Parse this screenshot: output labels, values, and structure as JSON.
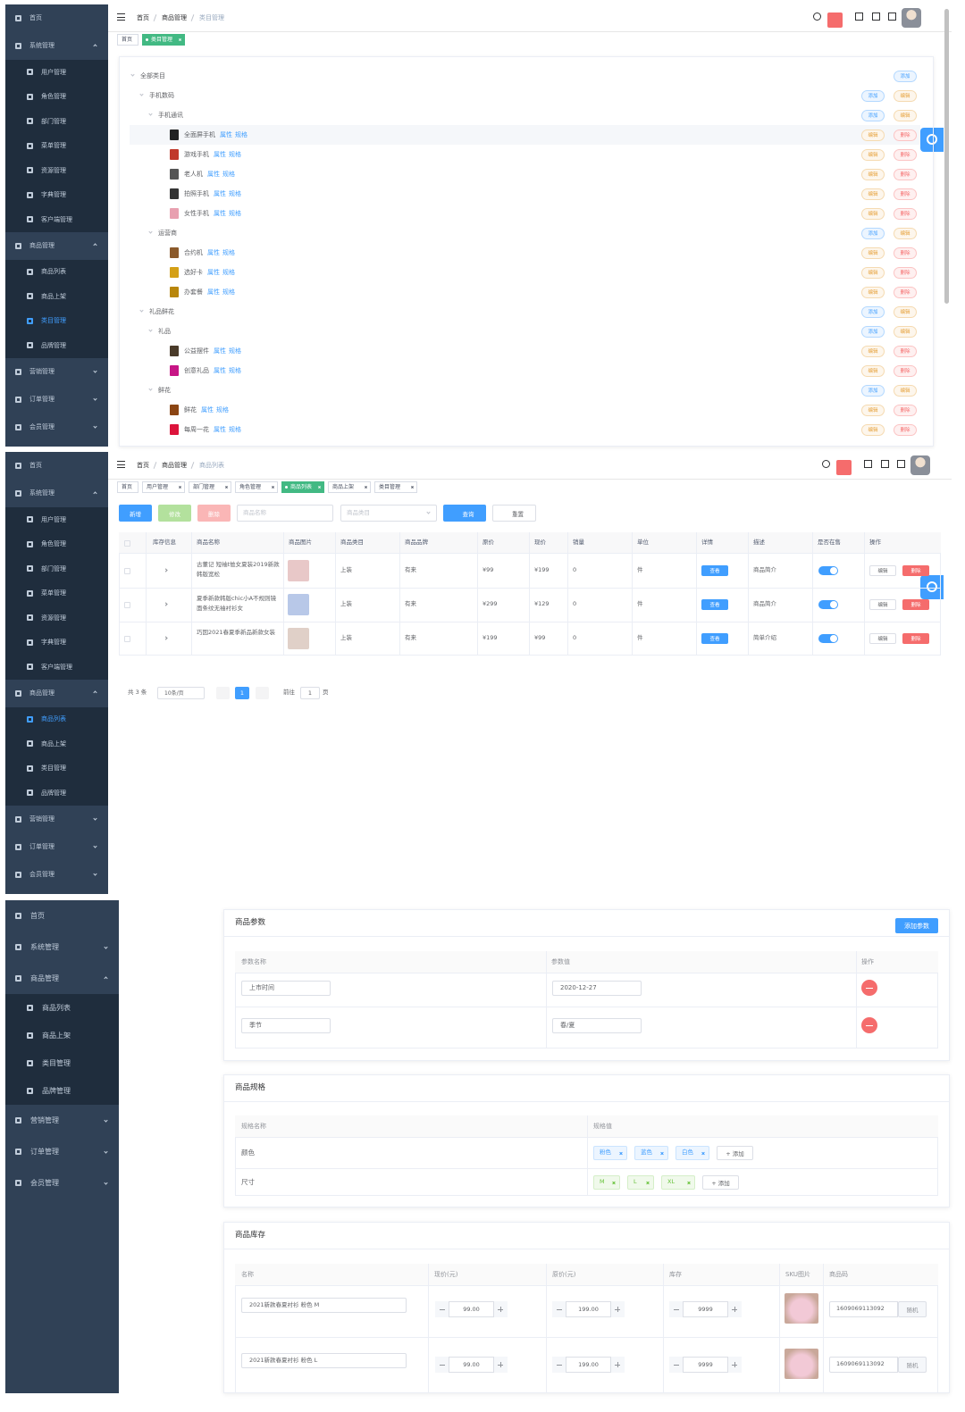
{
  "panel1": {
    "sidebar": [
      {
        "label": "首页",
        "level": 0
      },
      {
        "label": "系统管理",
        "level": 0,
        "expanded": true
      },
      {
        "label": "用户管理",
        "level": 1
      },
      {
        "label": "角色管理",
        "level": 1
      },
      {
        "label": "部门管理",
        "level": 1
      },
      {
        "label": "菜单管理",
        "level": 1
      },
      {
        "label": "资源管理",
        "level": 1
      },
      {
        "label": "字典管理",
        "level": 1
      },
      {
        "label": "客户端管理",
        "level": 1
      },
      {
        "label": "商品管理",
        "level": 0,
        "expanded": true
      },
      {
        "label": "商品列表",
        "level": 1
      },
      {
        "label": "商品上架",
        "level": 1
      },
      {
        "label": "类目管理",
        "level": 1,
        "active": true
      },
      {
        "label": "品牌管理",
        "level": 1
      },
      {
        "label": "营销管理",
        "level": 0,
        "expanded": false
      },
      {
        "label": "订单管理",
        "level": 0,
        "expanded": false
      },
      {
        "label": "会员管理",
        "level": 0,
        "expanded": false
      }
    ],
    "breadcrumb": [
      "首页",
      "商品管理",
      "类目管理"
    ],
    "tabs": [
      "首页",
      "类目管理"
    ],
    "active_tab": 1,
    "tree": {
      "button_labels": {
        "add": "添加",
        "edit": "编辑",
        "delete": "删除"
      },
      "link_labels": [
        "属性",
        "规格"
      ],
      "rows": [
        {
          "label": "全部类目",
          "level": 0,
          "buttons": [
            "add"
          ]
        },
        {
          "label": "手机数码",
          "level": 1,
          "buttons": [
            "add",
            "edit"
          ]
        },
        {
          "label": "手机通讯",
          "level": 2,
          "buttons": [
            "add",
            "edit"
          ]
        },
        {
          "label": "全面屏手机",
          "level": 3,
          "buttons": [
            "edit",
            "delete"
          ],
          "highlight": true
        },
        {
          "label": "游戏手机",
          "level": 3,
          "buttons": [
            "edit",
            "delete"
          ]
        },
        {
          "label": "老人机",
          "level": 3,
          "buttons": [
            "edit",
            "delete"
          ]
        },
        {
          "label": "拍照手机",
          "level": 3,
          "buttons": [
            "edit",
            "delete"
          ]
        },
        {
          "label": "女性手机",
          "level": 3,
          "buttons": [
            "edit",
            "delete"
          ]
        },
        {
          "label": "运营商",
          "level": 2,
          "buttons": [
            "add",
            "edit"
          ]
        },
        {
          "label": "合约机",
          "level": 3,
          "buttons": [
            "edit",
            "delete"
          ]
        },
        {
          "label": "选好卡",
          "level": 3,
          "buttons": [
            "edit",
            "delete"
          ]
        },
        {
          "label": "办套餐",
          "level": 3,
          "buttons": [
            "edit",
            "delete"
          ]
        },
        {
          "label": "礼品鲜花",
          "level": 1,
          "buttons": [
            "add",
            "edit"
          ]
        },
        {
          "label": "礼品",
          "level": 2,
          "buttons": [
            "add",
            "edit"
          ]
        },
        {
          "label": "公益摆件",
          "level": 3,
          "buttons": [
            "edit",
            "delete"
          ]
        },
        {
          "label": "创意礼品",
          "level": 3,
          "buttons": [
            "edit",
            "delete"
          ]
        },
        {
          "label": "鲜花",
          "level": 2,
          "buttons": [
            "add",
            "edit"
          ]
        },
        {
          "label": "鲜花",
          "level": 3,
          "buttons": [
            "edit",
            "delete"
          ]
        },
        {
          "label": "每周一花",
          "level": 3,
          "buttons": [
            "edit",
            "delete"
          ]
        }
      ]
    }
  },
  "panel2": {
    "sidebar": [
      {
        "label": "首页",
        "level": 0
      },
      {
        "label": "系统管理",
        "level": 0,
        "expanded": true
      },
      {
        "label": "用户管理",
        "level": 1
      },
      {
        "label": "角色管理",
        "level": 1
      },
      {
        "label": "部门管理",
        "level": 1
      },
      {
        "label": "菜单管理",
        "level": 1
      },
      {
        "label": "资源管理",
        "level": 1
      },
      {
        "label": "字典管理",
        "level": 1
      },
      {
        "label": "客户端管理",
        "level": 1
      },
      {
        "label": "商品管理",
        "level": 0,
        "expanded": true
      },
      {
        "label": "商品列表",
        "level": 1,
        "active": true
      },
      {
        "label": "商品上架",
        "level": 1
      },
      {
        "label": "类目管理",
        "level": 1
      },
      {
        "label": "品牌管理",
        "level": 1
      },
      {
        "label": "营销管理",
        "level": 0,
        "expanded": false
      },
      {
        "label": "订单管理",
        "level": 0,
        "expanded": false
      },
      {
        "label": "会员管理",
        "level": 0,
        "expanded": false
      }
    ],
    "breadcrumb": [
      "首页",
      "商品管理",
      "商品列表"
    ],
    "tabs": [
      "首页",
      "用户管理",
      "部门管理",
      "角色管理",
      "商品列表",
      "商品上架",
      "类目管理"
    ],
    "active_tab": 4,
    "toolbar": {
      "add": "新增",
      "edit": "修改",
      "delete": "删除",
      "name_placeholder": "商品名称",
      "category_placeholder": "商品类目",
      "search": "查询",
      "reset": "重置"
    },
    "table": {
      "headers": [
        "库存信息",
        "商品名称",
        "商品图片",
        "商品类目",
        "商品品牌",
        "原价",
        "现价",
        "销量",
        "单位",
        "详情",
        "描述",
        "是否在售",
        "操作"
      ],
      "rows": [
        {
          "name": "古董记 短袖t恤女夏装2019新款韩版宽松",
          "category": "上装",
          "brand": "有来",
          "original_price": "¥99",
          "current_price": "¥199",
          "sales": "0",
          "unit": "件",
          "detail": "查看",
          "description": "商品简介",
          "on_sale": true,
          "actions": [
            "编辑",
            "删除"
          ]
        },
        {
          "name": "夏季新款韩版chic小A不规则镜面条纹无袖衬衫女",
          "category": "上装",
          "brand": "有来",
          "original_price": "¥299",
          "current_price": "¥129",
          "sales": "0",
          "unit": "件",
          "detail": "查看",
          "description": "商品简介",
          "on_sale": true,
          "actions": [
            "编辑",
            "删除"
          ]
        },
        {
          "name": "巧囡2021春夏季新品新款女装",
          "category": "上装",
          "brand": "有来",
          "original_price": "¥199",
          "current_price": "¥99",
          "sales": "0",
          "unit": "件",
          "detail": "查看",
          "description": "简单介绍",
          "on_sale": true,
          "actions": [
            "编辑",
            "删除"
          ]
        }
      ]
    },
    "pagination": {
      "total": "共 3 条",
      "page_size": "10条/页",
      "current_page": "1",
      "goto": "前往",
      "goto_value": "1",
      "page_unit": "页"
    }
  },
  "panel3": {
    "sidebar": [
      {
        "label": "首页",
        "level": 0
      },
      {
        "label": "系统管理",
        "level": 0,
        "expanded": false
      },
      {
        "label": "商品管理",
        "level": 0,
        "expanded": true
      },
      {
        "label": "商品列表",
        "level": 1
      },
      {
        "label": "商品上架",
        "level": 1
      },
      {
        "label": "类目管理",
        "level": 1
      },
      {
        "label": "品牌管理",
        "level": 1
      },
      {
        "label": "营销管理",
        "level": 0,
        "expanded": false
      },
      {
        "label": "订单管理",
        "level": 0,
        "expanded": false
      },
      {
        "label": "会员管理",
        "level": 0,
        "expanded": false
      }
    ],
    "params": {
      "title": "商品参数",
      "add_button": "添加参数",
      "headers": [
        "参数名称",
        "参数值",
        "操作"
      ],
      "rows": [
        [
          "上市时间",
          "2020-12-27"
        ],
        [
          "季节",
          "春/夏"
        ]
      ]
    },
    "specs": {
      "title": "商品规格",
      "headers": [
        "规格名称",
        "规格值"
      ],
      "rows": [
        {
          "name": "颜色",
          "values": [
            "粉色",
            "蓝色",
            "白色"
          ],
          "add": "+ 添加",
          "color": "#409eff"
        },
        {
          "name": "尺寸",
          "values": [
            "M",
            "L",
            "XL"
          ],
          "add": "+ 添加",
          "color": "#67c23a"
        }
      ]
    },
    "stock": {
      "title": "商品库存",
      "headers": [
        "名称",
        "现价(元)",
        "原价(元)",
        "库存",
        "SKU图片",
        "商品码"
      ],
      "rows": [
        {
          "name": "2021新款春夏衬衫 粉色 M",
          "price": "99.00",
          "original_price": "199.00",
          "stock": "9999",
          "code": "1609069113092",
          "random": "随机"
        },
        {
          "name": "2021新款春夏衬衫 粉色 L",
          "price": "99.00",
          "original_price": "199.00",
          "stock": "9999",
          "code": "1609069113092",
          "random": "随机"
        }
      ]
    }
  }
}
